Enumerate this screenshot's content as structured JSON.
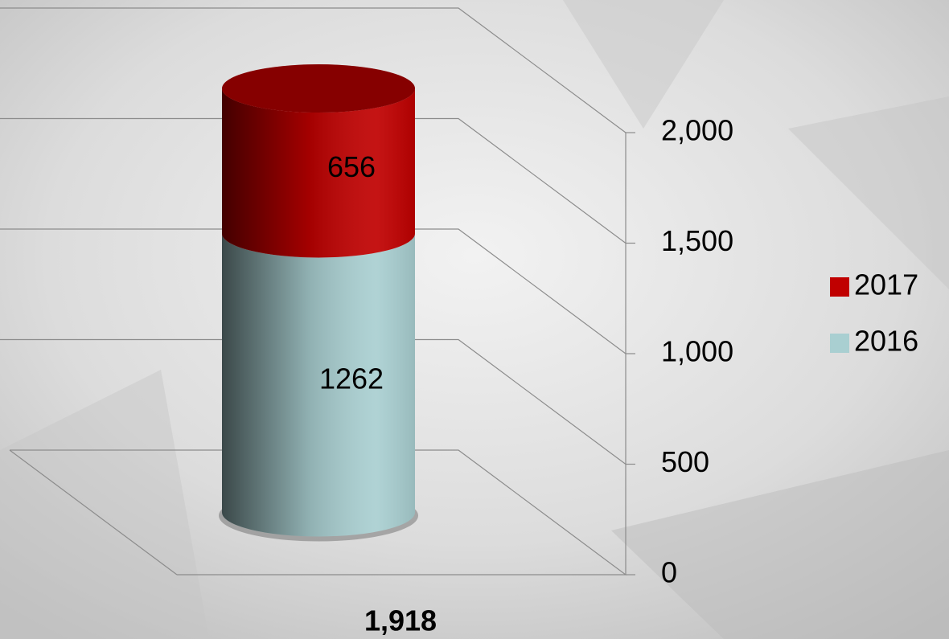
{
  "chart_data": {
    "type": "bar3d",
    "stacked": true,
    "categories": [
      "1,918"
    ],
    "series": [
      {
        "name": "2016",
        "color": "#a9cfd1",
        "values": [
          1262
        ]
      },
      {
        "name": "2017",
        "color": "#c00000",
        "values": [
          656
        ]
      }
    ],
    "ylim": [
      0,
      2000
    ],
    "yticks": [
      0,
      500,
      {
        "value": 1000,
        "label": "1,000"
      },
      {
        "value": 1500,
        "label": "1,500"
      },
      {
        "value": 2000,
        "label": "2,000"
      }
    ],
    "grid": true,
    "legend": "right"
  }
}
